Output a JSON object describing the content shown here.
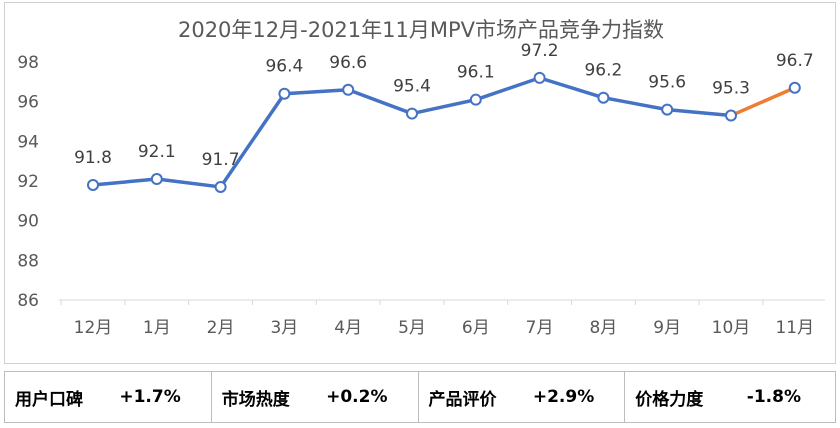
{
  "chart_data": {
    "type": "line",
    "title": "2020年12月-2021年11月MPV市场产品竞争力指数",
    "categories": [
      "12月",
      "1月",
      "2月",
      "3月",
      "4月",
      "5月",
      "6月",
      "7月",
      "8月",
      "9月",
      "10月",
      "11月"
    ],
    "values": [
      91.8,
      92.1,
      91.7,
      96.4,
      96.6,
      95.4,
      96.1,
      97.2,
      96.2,
      95.6,
      95.3,
      96.7
    ],
    "data_labels": [
      "91.8",
      "92.1",
      "91.7",
      "96.4",
      "96.6",
      "95.4",
      "96.1",
      "97.2",
      "96.2",
      "95.6",
      "95.3",
      "96.7"
    ],
    "yticks": [
      "98",
      "96",
      "94",
      "92",
      "90",
      "88",
      "86"
    ],
    "ylim": [
      86,
      98
    ],
    "xlabel": "",
    "ylabel": "",
    "grid": false,
    "highlight_last_segment": true,
    "colors": {
      "line": "#4472c4",
      "highlight": "#ed7d31",
      "drop_line": "#c9d7ea"
    }
  },
  "metrics": [
    {
      "label": "用户口碑",
      "value": "+1.7%"
    },
    {
      "label": "市场热度",
      "value": "+0.2%"
    },
    {
      "label": "产品评价",
      "value": "+2.9%"
    },
    {
      "label": "价格力度",
      "value": "-1.8%"
    }
  ]
}
